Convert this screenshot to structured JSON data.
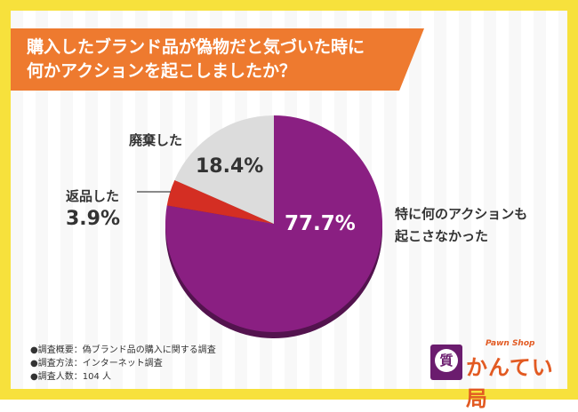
{
  "title_lines": [
    "購入したブランド品が偽物だと気づいた時に",
    "何かアクションを起こしましたか？"
  ],
  "chart_data": {
    "type": "pie",
    "slices": [
      {
        "label": "特に何のアクションも起こさなかった",
        "label_lines": [
          "特に何のアクションも",
          "起こさなかった"
        ],
        "value": 77.7,
        "display": "77.7%",
        "color": "#8a1f82"
      },
      {
        "label": "返品した",
        "label_lines": [
          "返品した"
        ],
        "value": 3.9,
        "display": "3.9%",
        "color": "#d42e23"
      },
      {
        "label": "廃棄した",
        "label_lines": [
          "廃棄した"
        ],
        "value": 18.4,
        "display": "18.4%",
        "color": "#dcdcdc"
      }
    ]
  },
  "survey": [
    "●調査概要：偽ブランド品の購入に関する調査",
    "●調査方法：インターネット調査",
    "●調査人数：104 人"
  ],
  "logo": {
    "badge": "質",
    "sub": "Pawn Shop",
    "main": "かんてい局"
  },
  "colors": {
    "frame": "#f7e13c",
    "banner": "#ee7a2f"
  }
}
